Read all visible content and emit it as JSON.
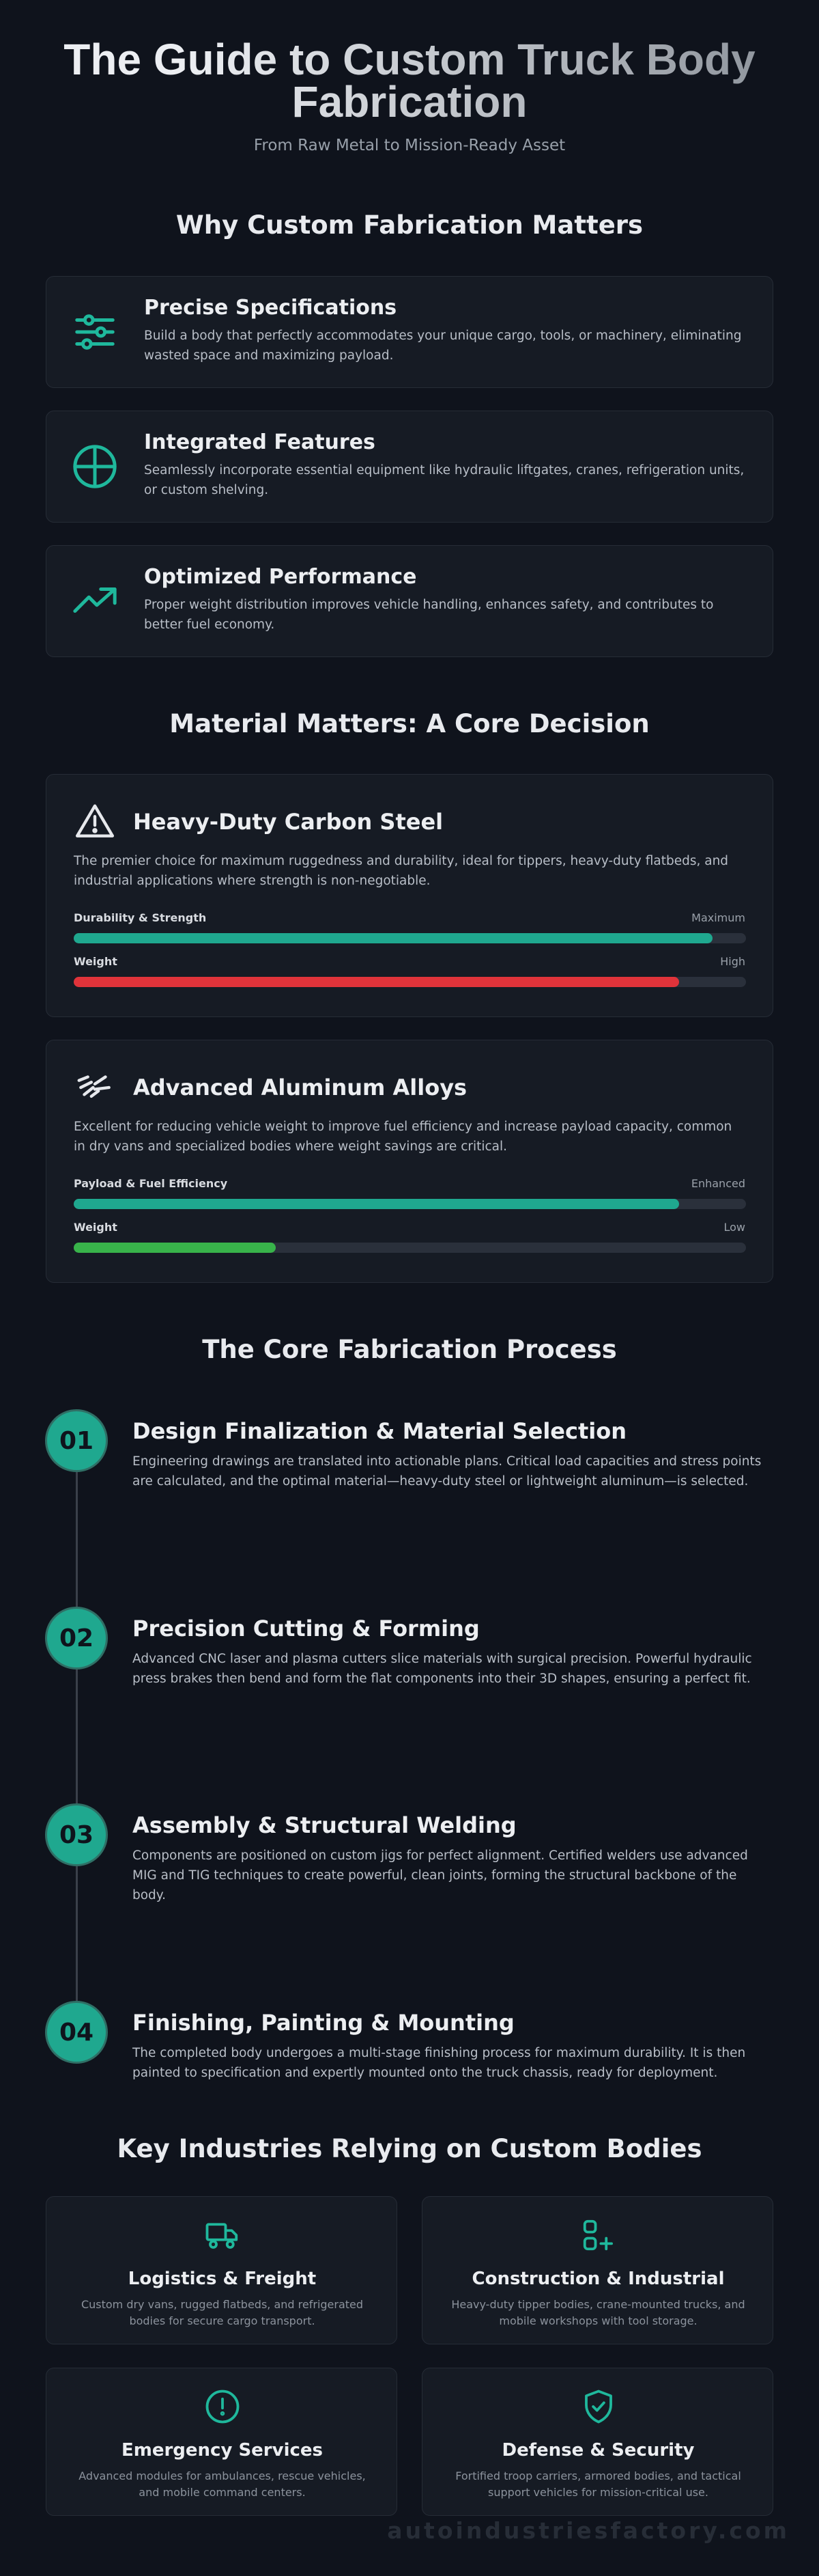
{
  "header": {
    "title": "The Guide to Custom Truck Body Fabrication",
    "subtitle": "From Raw Metal to Mission-Ready Asset"
  },
  "why": {
    "heading": "Why Custom Fabrication Matters",
    "items": [
      {
        "title": "Precise Specifications",
        "text": "Build a body that perfectly accommodates your unique cargo, tools, or machinery, eliminating wasted space and maximizing payload."
      },
      {
        "title": "Integrated Features",
        "text": "Seamlessly incorporate essential equipment like hydraulic liftgates, cranes, refrigeration units, or custom shelving."
      },
      {
        "title": "Optimized Performance",
        "text": "Proper weight distribution improves vehicle handling, enhances safety, and contributes to better fuel economy."
      }
    ]
  },
  "materials": {
    "heading": "Material Matters: A Core Decision",
    "items": [
      {
        "title": "Heavy-Duty Carbon Steel",
        "text": "The premier choice for maximum ruggedness and durability, ideal for tippers, heavy-duty flatbeds, and industrial applications where strength is non-negotiable.",
        "metrics": [
          {
            "label": "Durability & Strength",
            "rating": "Maximum",
            "level": 95,
            "color": "#1fa88f"
          },
          {
            "label": "Weight",
            "rating": "High",
            "level": 90,
            "color": "#e0333a"
          }
        ]
      },
      {
        "title": "Advanced Aluminum Alloys",
        "text": "Excellent for reducing vehicle weight to improve fuel efficiency and increase payload capacity, common in dry vans and specialized bodies where weight savings are critical.",
        "metrics": [
          {
            "label": "Payload & Fuel Efficiency",
            "rating": "Enhanced",
            "level": 90,
            "color": "#1fa88f"
          },
          {
            "label": "Weight",
            "rating": "Low",
            "level": 30,
            "color": "#38b34a"
          }
        ]
      }
    ]
  },
  "process": {
    "heading": "The Core Fabrication Process",
    "steps": [
      {
        "number": "01",
        "title": "Design Finalization & Material Selection",
        "text": "Engineering drawings are translated into actionable plans. Critical load capacities and stress points are calculated, and the optimal material—heavy-duty steel or lightweight aluminum—is selected."
      },
      {
        "number": "02",
        "title": "Precision Cutting & Forming",
        "text": "Advanced CNC laser and plasma cutters slice materials with surgical precision. Powerful hydraulic press brakes then bend and form the flat components into their 3D shapes, ensuring a perfect fit."
      },
      {
        "number": "03",
        "title": "Assembly & Structural Welding",
        "text": "Components are positioned on custom jigs for perfect alignment. Certified welders use advanced MIG and TIG techniques to create powerful, clean joints, forming the structural backbone of the body."
      },
      {
        "number": "04",
        "title": "Finishing, Painting & Mounting",
        "text": "The completed body undergoes a multi-stage finishing process for maximum durability. It is then painted to specification and expertly mounted onto the truck chassis, ready for deployment."
      }
    ]
  },
  "industries": {
    "heading": "Key Industries Relying on Custom Bodies",
    "items": [
      {
        "title": "Logistics & Freight",
        "text": "Custom dry vans, rugged flatbeds, and refrigerated bodies for secure cargo transport."
      },
      {
        "title": "Construction & Industrial",
        "text": "Heavy-duty tipper bodies, crane-mounted trucks, and mobile workshops with tool storage."
      },
      {
        "title": "Emergency Services",
        "text": "Advanced modules for ambulances, rescue vehicles, and mobile command centers."
      },
      {
        "title": "Defense & Security",
        "text": "Fortified troop carriers, armored bodies, and tactical support vehicles for mission-critical use."
      }
    ]
  },
  "footer": {
    "watermark": "autoindustriesfactory.com"
  }
}
